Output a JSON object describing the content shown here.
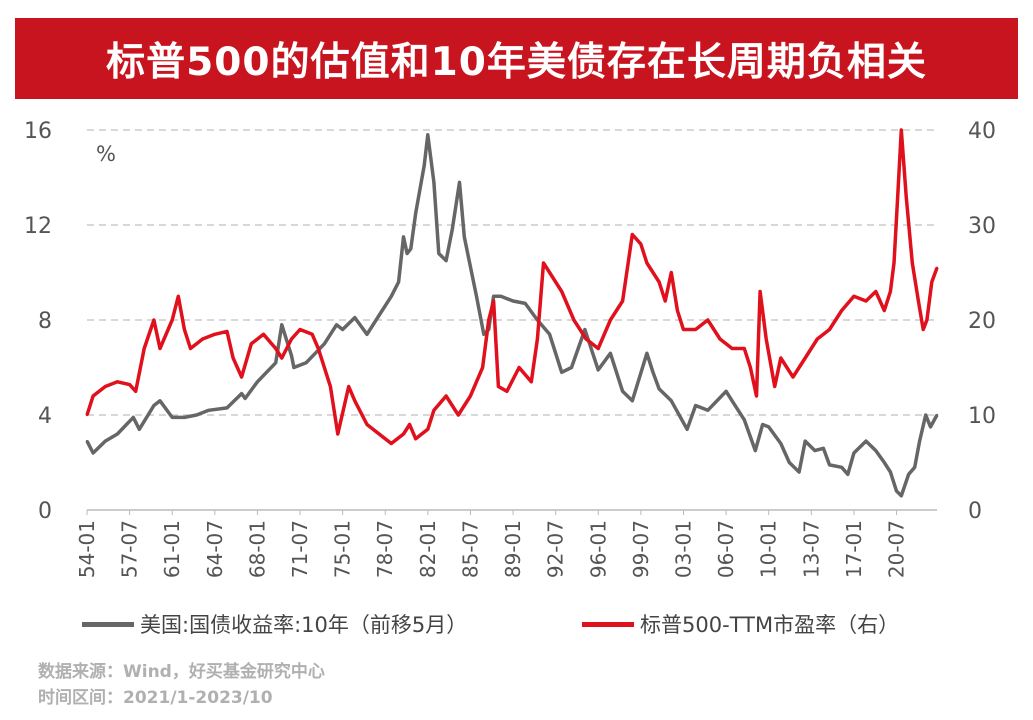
{
  "title": "标普500的估值和10年美债存在长周期负相关",
  "unit_label": "%",
  "source_line": "数据来源：Wind，好买基金研究中心",
  "period_line": "时间区间：2021/1-2023/10",
  "colors": {
    "title_bg": "#c8141e",
    "yield": "#666666",
    "pe": "#e0101c",
    "grid": "#cccccc"
  },
  "legend": {
    "yield_label": "美国:国债收益率:10年（前移5月）",
    "pe_label": "标普500-TTM市盈率（右）"
  },
  "chart_data": {
    "type": "line",
    "title": "标普500的估值和10年美债存在长周期负相关",
    "x_tick_labels": [
      "54-01",
      "57-07",
      "61-01",
      "64-07",
      "68-01",
      "71-07",
      "75-01",
      "78-07",
      "82-01",
      "85-07",
      "89-01",
      "92-07",
      "96-01",
      "99-07",
      "03-01",
      "06-07",
      "10-01",
      "13-07",
      "17-01",
      "20-07"
    ],
    "x_range": [
      1954.0,
      2023.83
    ],
    "y_left": {
      "ticks": [
        0,
        4,
        8,
        12,
        16
      ],
      "ylim": [
        0,
        16
      ],
      "unit": "%"
    },
    "y_right": {
      "ticks": [
        0,
        10,
        20,
        30,
        40
      ],
      "ylim": [
        0,
        40
      ]
    },
    "grid": true,
    "legend_position": "bottom",
    "series": [
      {
        "name": "美国:国债收益率:10年（前移5月）",
        "axis": "left",
        "color": "#666666",
        "x": [
          1954.0,
          1954.5,
          1955.5,
          1956.5,
          1957.8,
          1958.3,
          1959.5,
          1960.0,
          1961.0,
          1962.0,
          1963.0,
          1964.0,
          1965.5,
          1966.7,
          1967.0,
          1968.0,
          1969.5,
          1970.0,
          1970.8,
          1971.0,
          1972.0,
          1973.5,
          1974.5,
          1975.0,
          1976.0,
          1977.0,
          1978.0,
          1979.0,
          1979.6,
          1980.0,
          1980.3,
          1980.6,
          1981.0,
          1981.7,
          1982.0,
          1982.5,
          1982.9,
          1983.5,
          1984.0,
          1984.6,
          1985.0,
          1986.0,
          1986.6,
          1987.0,
          1987.4,
          1988.0,
          1989.0,
          1990.0,
          1991.0,
          1992.0,
          1993.0,
          1993.8,
          1994.9,
          1996.0,
          1997.0,
          1998.0,
          1998.8,
          2000.0,
          2000.5,
          2001.0,
          2002.0,
          2003.3,
          2004.0,
          2005.0,
          2006.5,
          2007.0,
          2008.0,
          2008.9,
          2009.5,
          2010.0,
          2011.0,
          2011.7,
          2012.5,
          2013.0,
          2013.8,
          2014.5,
          2015.0,
          2016.0,
          2016.5,
          2017.0,
          2018.0,
          2018.8,
          2019.5,
          2020.0,
          2020.5,
          2020.9,
          2021.5,
          2022.0,
          2022.4,
          2022.9,
          2023.3,
          2023.83
        ],
        "values": [
          2.9,
          2.4,
          2.9,
          3.2,
          3.9,
          3.4,
          4.4,
          4.6,
          3.9,
          3.9,
          4.0,
          4.2,
          4.3,
          4.9,
          4.7,
          5.4,
          6.2,
          7.8,
          6.5,
          6.0,
          6.2,
          7.0,
          7.8,
          7.6,
          8.1,
          7.4,
          8.2,
          9.0,
          9.6,
          11.5,
          10.8,
          11.0,
          12.5,
          14.5,
          15.8,
          13.8,
          10.8,
          10.5,
          11.8,
          13.8,
          11.5,
          9.0,
          7.4,
          7.6,
          9.0,
          9.0,
          8.8,
          8.7,
          8.0,
          7.4,
          5.8,
          6.0,
          7.6,
          5.9,
          6.6,
          5.0,
          4.6,
          6.6,
          5.8,
          5.1,
          4.6,
          3.4,
          4.4,
          4.2,
          5.0,
          4.6,
          3.8,
          2.5,
          3.6,
          3.5,
          2.8,
          2.0,
          1.6,
          2.9,
          2.5,
          2.6,
          1.9,
          1.8,
          1.5,
          2.4,
          2.9,
          2.5,
          2.0,
          1.6,
          0.8,
          0.6,
          1.5,
          1.8,
          2.9,
          4.0,
          3.5,
          4.0
        ]
      },
      {
        "name": "标普500-TTM市盈率（右）",
        "axis": "right",
        "color": "#e0101c",
        "x": [
          1954.0,
          1954.5,
          1955.5,
          1956.5,
          1957.5,
          1958.0,
          1958.7,
          1959.5,
          1960.0,
          1961.0,
          1961.5,
          1962.0,
          1962.5,
          1963.5,
          1964.5,
          1965.5,
          1966.0,
          1966.7,
          1967.5,
          1968.5,
          1969.5,
          1970.0,
          1970.8,
          1971.5,
          1972.5,
          1973.0,
          1974.0,
          1974.6,
          1975.5,
          1976.0,
          1977.0,
          1978.0,
          1979.0,
          1980.0,
          1980.5,
          1981.0,
          1981.5,
          1982.0,
          1982.5,
          1983.5,
          1984.5,
          1985.5,
          1986.5,
          1987.0,
          1987.4,
          1987.8,
          1988.5,
          1989.5,
          1990.5,
          1991.0,
          1991.5,
          1992.0,
          1993.0,
          1994.0,
          1995.0,
          1996.0,
          1997.0,
          1998.0,
          1998.8,
          1999.5,
          2000.0,
          2001.0,
          2001.5,
          2002.0,
          2002.5,
          2003.0,
          2004.0,
          2005.0,
          2006.0,
          2007.0,
          2008.0,
          2008.5,
          2009.0,
          2009.3,
          2009.8,
          2010.5,
          2011.0,
          2012.0,
          2013.0,
          2014.0,
          2015.0,
          2016.0,
          2017.0,
          2018.0,
          2018.8,
          2019.5,
          2020.0,
          2020.3,
          2020.6,
          2020.9,
          2021.3,
          2021.8,
          2022.3,
          2022.7,
          2023.0,
          2023.4,
          2023.83
        ],
        "values": [
          10.0,
          12.0,
          13.0,
          13.5,
          13.2,
          12.5,
          17.0,
          20.0,
          17.0,
          20.0,
          22.5,
          19.0,
          17.0,
          18.0,
          18.5,
          18.8,
          16.0,
          14.0,
          17.5,
          18.5,
          17.0,
          16.0,
          18.0,
          19.0,
          18.5,
          17.0,
          13.0,
          8.0,
          13.0,
          11.5,
          9.0,
          8.0,
          7.0,
          8.0,
          9.0,
          7.5,
          8.0,
          8.5,
          10.5,
          12.0,
          10.0,
          12.0,
          15.0,
          20.0,
          22.0,
          13.0,
          12.5,
          15.0,
          13.5,
          18.0,
          26.0,
          25.0,
          23.0,
          20.0,
          18.0,
          17.0,
          20.0,
          22.0,
          29.0,
          28.0,
          26.0,
          24.0,
          22.0,
          25.0,
          21.0,
          19.0,
          19.0,
          20.0,
          18.0,
          17.0,
          17.0,
          15.0,
          12.0,
          23.0,
          18.0,
          13.0,
          16.0,
          14.0,
          16.0,
          18.0,
          19.0,
          21.0,
          22.5,
          22.0,
          23.0,
          21.0,
          23.0,
          26.0,
          33.0,
          40.0,
          33.0,
          26.0,
          22.0,
          19.0,
          20.0,
          24.0,
          25.5
        ]
      }
    ]
  }
}
